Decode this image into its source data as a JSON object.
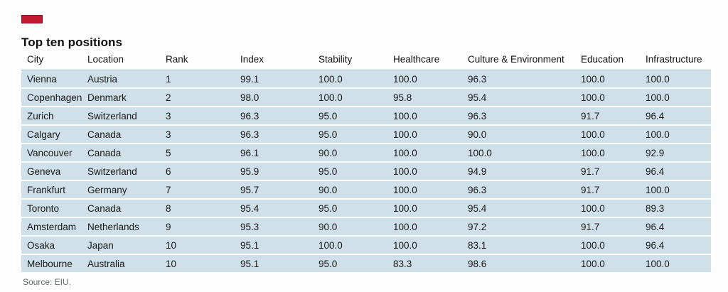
{
  "chart_data": {
    "type": "table",
    "title": "Top ten positions",
    "columns": [
      "City",
      "Location",
      "Rank",
      "Index",
      "Stability",
      "Healthcare",
      "Culture & Environment",
      "Education",
      "Infrastructure"
    ],
    "rows": [
      [
        "Vienna",
        "Austria",
        "1",
        "99.1",
        "100.0",
        "100.0",
        "96.3",
        "100.0",
        "100.0"
      ],
      [
        "Copenhagen",
        "Denmark",
        "2",
        "98.0",
        "100.0",
        "95.8",
        "95.4",
        "100.0",
        "100.0"
      ],
      [
        "Zurich",
        "Switzerland",
        "3",
        "96.3",
        "95.0",
        "100.0",
        "96.3",
        "91.7",
        "96.4"
      ],
      [
        "Calgary",
        "Canada",
        "3",
        "96.3",
        "95.0",
        "100.0",
        "90.0",
        "100.0",
        "100.0"
      ],
      [
        "Vancouver",
        "Canada",
        "5",
        "96.1",
        "90.0",
        "100.0",
        "100.0",
        "100.0",
        "92.9"
      ],
      [
        "Geneva",
        "Switzerland",
        "6",
        "95.9",
        "95.0",
        "100.0",
        "94.9",
        "91.7",
        "96.4"
      ],
      [
        "Frankfurt",
        "Germany",
        "7",
        "95.7",
        "90.0",
        "100.0",
        "96.3",
        "91.7",
        "100.0"
      ],
      [
        "Toronto",
        "Canada",
        "8",
        "95.4",
        "95.0",
        "100.0",
        "95.4",
        "100.0",
        "89.3"
      ],
      [
        "Amsterdam",
        "Netherlands",
        "9",
        "95.3",
        "90.0",
        "100.0",
        "97.2",
        "91.7",
        "96.4"
      ],
      [
        "Osaka",
        "Japan",
        "10",
        "95.1",
        "100.0",
        "100.0",
        "83.1",
        "100.0",
        "96.4"
      ],
      [
        "Melbourne",
        "Australia",
        "10",
        "95.1",
        "95.0",
        "83.3",
        "98.6",
        "100.0",
        "100.0"
      ]
    ],
    "source": "Source: EIU.",
    "layout": {
      "legend": "none",
      "grid": "off",
      "row_stripe_color": "#d0e0e8",
      "brand_tag_color": "#c11b31",
      "text_color": "#16181a",
      "source_text_color": "#62686d"
    }
  }
}
